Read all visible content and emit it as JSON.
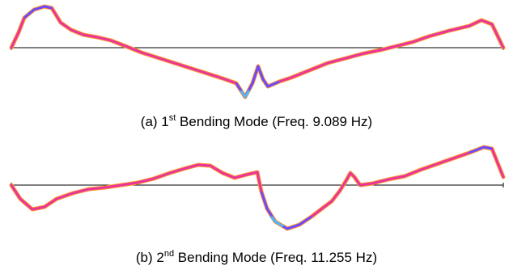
{
  "colors": {
    "baseline": "#000000",
    "stroke_outer": "#ff9a2a",
    "stroke_main": "#e8359c",
    "stroke_blue": "#6a4cff",
    "stroke_cyan": "#4fb8ff"
  },
  "modes": [
    {
      "prefix": "(a) 1",
      "sup": "st",
      "suffix": " Bending Mode (Freq. 9.089 Hz)"
    },
    {
      "prefix": "(b) 2",
      "sup": "nd",
      "suffix": " Bending Mode (Freq. 11.255 Hz)"
    }
  ]
}
